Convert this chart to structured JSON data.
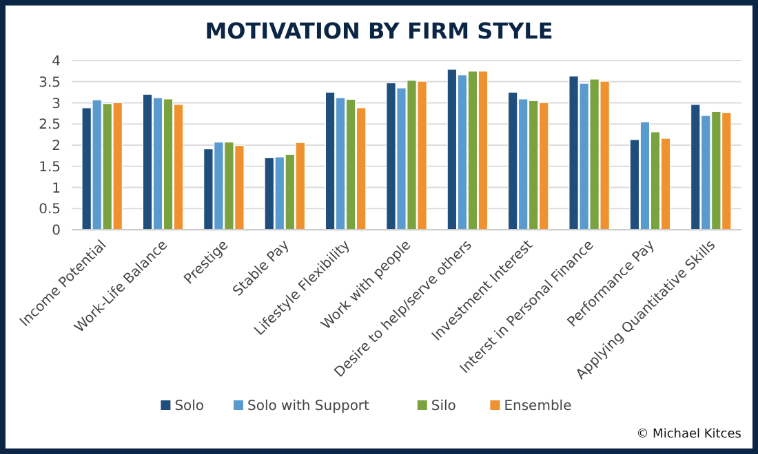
{
  "chart_data": {
    "type": "bar",
    "title": "MOTIVATION BY FIRM STYLE",
    "categories": [
      "Income Potential",
      "Work-Life Balance",
      "Prestige",
      "Stable Pay",
      "Lifestyle Flexibility",
      "Work with people",
      "Desire to help/serve others",
      "Investment Interest",
      "Interst in Personal Finance",
      "Performance Pay",
      "Applying Quantitative Skills"
    ],
    "series": [
      {
        "name": "Solo",
        "color": "#1f4e7d",
        "values": [
          2.88,
          3.2,
          1.91,
          1.7,
          3.25,
          3.47,
          3.79,
          3.25,
          3.63,
          2.13,
          2.96
        ]
      },
      {
        "name": "Solo with Support",
        "color": "#5a9bcf",
        "values": [
          3.07,
          3.12,
          2.07,
          1.72,
          3.12,
          3.35,
          3.66,
          3.09,
          3.46,
          2.55,
          2.7
        ]
      },
      {
        "name": "Silo",
        "color": "#7aa23f",
        "values": [
          2.98,
          3.09,
          2.07,
          1.78,
          3.08,
          3.53,
          3.75,
          3.05,
          3.56,
          2.31,
          2.79
        ]
      },
      {
        "name": "Ensemble",
        "color": "#f0912f",
        "values": [
          3.0,
          2.96,
          1.99,
          2.06,
          2.88,
          3.51,
          3.75,
          3.0,
          3.51,
          2.16,
          2.77
        ]
      }
    ],
    "ylim": [
      0,
      4
    ],
    "yticks": [
      0,
      0.5,
      1,
      1.5,
      2,
      2.5,
      3,
      3.5,
      4
    ],
    "grid": "y",
    "legend": "bottom",
    "annotations": [
      "© Michael Kitces"
    ]
  }
}
